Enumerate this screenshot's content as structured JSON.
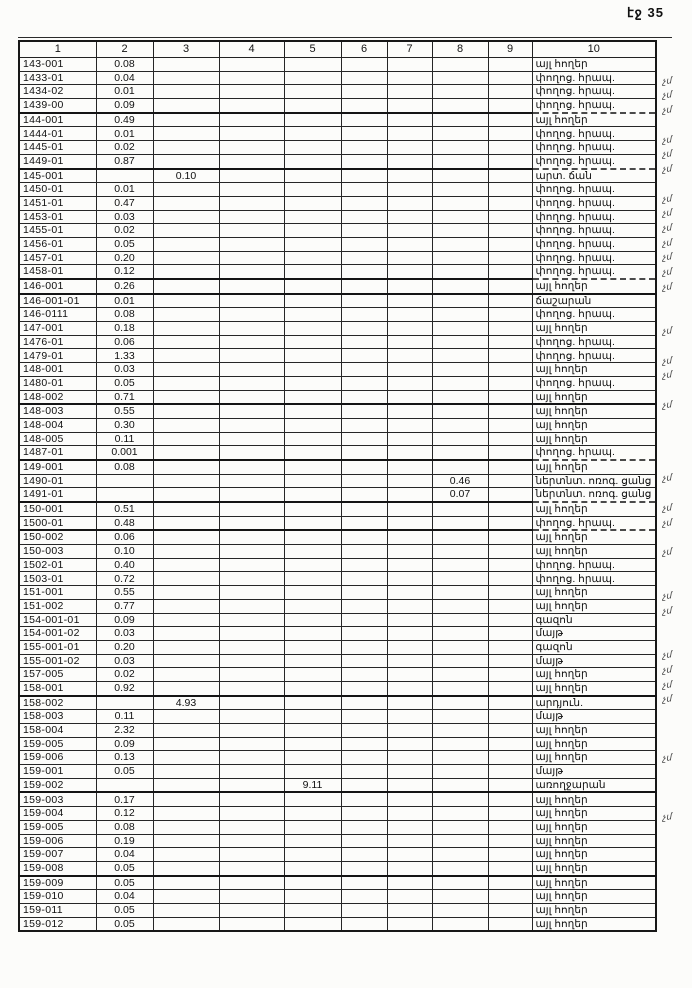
{
  "page": {
    "label": "էջ 35"
  },
  "table": {
    "headers": [
      "1",
      "2",
      "3",
      "4",
      "5",
      "6",
      "7",
      "8",
      "9",
      "10"
    ],
    "rows": [
      {
        "cells": [
          "143-001",
          "0.08",
          "",
          "",
          "",
          "",
          "",
          "",
          "",
          "այլ հողեր"
        ],
        "mark": ""
      },
      {
        "cells": [
          "1433-01",
          "0.04",
          "",
          "",
          "",
          "",
          "",
          "",
          "",
          "փողոց. հրապ."
        ],
        "mark": "չմ"
      },
      {
        "cells": [
          "1434-02",
          "0.01",
          "",
          "",
          "",
          "",
          "",
          "",
          "",
          "փողոց. հրապ."
        ],
        "mark": "չմ"
      },
      {
        "cells": [
          "1439-00",
          "0.09",
          "",
          "",
          "",
          "",
          "",
          "",
          "",
          "փողոց. հրապ."
        ],
        "mark": "չմ"
      },
      {
        "cells": [
          "144-001",
          "0.49",
          "",
          "",
          "",
          "",
          "",
          "",
          "",
          "այլ հողեր"
        ],
        "mark": ""
      },
      {
        "cells": [
          "1444-01",
          "0.01",
          "",
          "",
          "",
          "",
          "",
          "",
          "",
          "փողոց. հրապ."
        ],
        "mark": "չմ"
      },
      {
        "cells": [
          "1445-01",
          "0.02",
          "",
          "",
          "",
          "",
          "",
          "",
          "",
          "փողոց. հրապ."
        ],
        "mark": "չմ"
      },
      {
        "cells": [
          "1449-01",
          "0.87",
          "",
          "",
          "",
          "",
          "",
          "",
          "",
          "փողոց. հրապ."
        ],
        "mark": "չմ"
      },
      {
        "cells": [
          "145-001",
          "",
          "0.10",
          "",
          "",
          "",
          "",
          "",
          "",
          "արտ. ճան"
        ],
        "mark": ""
      },
      {
        "cells": [
          "1450-01",
          "0.01",
          "",
          "",
          "",
          "",
          "",
          "",
          "",
          "փողոց. հրապ."
        ],
        "mark": "չմ"
      },
      {
        "cells": [
          "1451-01",
          "0.47",
          "",
          "",
          "",
          "",
          "",
          "",
          "",
          "փողոց. հրապ."
        ],
        "mark": "չմ"
      },
      {
        "cells": [
          "1453-01",
          "0.03",
          "",
          "",
          "",
          "",
          "",
          "",
          "",
          "փողոց. հրապ."
        ],
        "mark": "չմ"
      },
      {
        "cells": [
          "1455-01",
          "0.02",
          "",
          "",
          "",
          "",
          "",
          "",
          "",
          "փողոց. հրապ."
        ],
        "mark": "չմ"
      },
      {
        "cells": [
          "1456-01",
          "0.05",
          "",
          "",
          "",
          "",
          "",
          "",
          "",
          "փողոց. հրապ."
        ],
        "mark": "չմ"
      },
      {
        "cells": [
          "1457-01",
          "0.20",
          "",
          "",
          "",
          "",
          "",
          "",
          "",
          "փողոց. հրապ."
        ],
        "mark": "չմ"
      },
      {
        "cells": [
          "1458-01",
          "0.12",
          "",
          "",
          "",
          "",
          "",
          "",
          "",
          "փողոց. հրապ."
        ],
        "mark": "չմ"
      },
      {
        "cells": [
          "146-001",
          "0.26",
          "",
          "",
          "",
          "",
          "",
          "",
          "",
          "այլ հողեր"
        ],
        "mark": ""
      },
      {
        "cells": [
          "146-001-01",
          "0.01",
          "",
          "",
          "",
          "",
          "",
          "",
          "",
          "ճաշարան"
        ],
        "mark": ""
      },
      {
        "cells": [
          "146-0111",
          "0.08",
          "",
          "",
          "",
          "",
          "",
          "",
          "",
          "փողոց. հրապ."
        ],
        "mark": "չմ"
      },
      {
        "cells": [
          "147-001",
          "0.18",
          "",
          "",
          "",
          "",
          "",
          "",
          "",
          "այլ հողեր"
        ],
        "mark": ""
      },
      {
        "cells": [
          "1476-01",
          "0.06",
          "",
          "",
          "",
          "",
          "",
          "",
          "",
          "փողոց. հրապ."
        ],
        "mark": "չմ"
      },
      {
        "cells": [
          "1479-01",
          "1.33",
          "",
          "",
          "",
          "",
          "",
          "",
          "",
          "փողոց. հրապ."
        ],
        "mark": "չմ"
      },
      {
        "cells": [
          "148-001",
          "0.03",
          "",
          "",
          "",
          "",
          "",
          "",
          "",
          "այլ հողեր"
        ],
        "mark": ""
      },
      {
        "cells": [
          "1480-01",
          "0.05",
          "",
          "",
          "",
          "",
          "",
          "",
          "",
          "փողոց. հրապ."
        ],
        "mark": "չմ"
      },
      {
        "cells": [
          "148-002",
          "0.71",
          "",
          "",
          "",
          "",
          "",
          "",
          "",
          "այլ հողեր"
        ],
        "mark": ""
      },
      {
        "cells": [
          "148-003",
          "0.55",
          "",
          "",
          "",
          "",
          "",
          "",
          "",
          "այլ հողեր"
        ],
        "mark": ""
      },
      {
        "cells": [
          "148-004",
          "0.30",
          "",
          "",
          "",
          "",
          "",
          "",
          "",
          "այլ հողեր"
        ],
        "mark": ""
      },
      {
        "cells": [
          "148-005",
          "0.11",
          "",
          "",
          "",
          "",
          "",
          "",
          "",
          "այլ հողեր"
        ],
        "mark": ""
      },
      {
        "cells": [
          "1487-01",
          "0.001",
          "",
          "",
          "",
          "",
          "",
          "",
          "",
          "փողոց. հրապ."
        ],
        "mark": "չմ"
      },
      {
        "cells": [
          "149-001",
          "0.08",
          "",
          "",
          "",
          "",
          "",
          "",
          "",
          "այլ հողեր"
        ],
        "mark": ""
      },
      {
        "cells": [
          "1490-01",
          "",
          "",
          "",
          "",
          "",
          "",
          "0.46",
          "",
          "ներտնտ. ոռոգ. ցանց"
        ],
        "mark": "չմ"
      },
      {
        "cells": [
          "1491-01",
          "",
          "",
          "",
          "",
          "",
          "",
          "0.07",
          "",
          "ներտնտ. ոռոգ. ցանց"
        ],
        "mark": "չմ"
      },
      {
        "cells": [
          "150-001",
          "0.51",
          "",
          "",
          "",
          "",
          "",
          "",
          "",
          "այլ հողեր"
        ],
        "mark": ""
      },
      {
        "cells": [
          "1500-01",
          "0.48",
          "",
          "",
          "",
          "",
          "",
          "",
          "",
          "փողոց. հրապ."
        ],
        "mark": "չմ"
      },
      {
        "cells": [
          "150-002",
          "0.06",
          "",
          "",
          "",
          "",
          "",
          "",
          "",
          "այլ հողեր"
        ],
        "mark": ""
      },
      {
        "cells": [
          "150-003",
          "0.10",
          "",
          "",
          "",
          "",
          "",
          "",
          "",
          "այլ հողեր"
        ],
        "mark": ""
      },
      {
        "cells": [
          "1502-01",
          "0.40",
          "",
          "",
          "",
          "",
          "",
          "",
          "",
          "փողոց. հրապ."
        ],
        "mark": "չմ"
      },
      {
        "cells": [
          "1503-01",
          "0.72",
          "",
          "",
          "",
          "",
          "",
          "",
          "",
          "փողոց. հրապ."
        ],
        "mark": "չմ"
      },
      {
        "cells": [
          "151-001",
          "0.55",
          "",
          "",
          "",
          "",
          "",
          "",
          "",
          "այլ հողեր"
        ],
        "mark": ""
      },
      {
        "cells": [
          "151-002",
          "0.77",
          "",
          "",
          "",
          "",
          "",
          "",
          "",
          "այլ հողեր"
        ],
        "mark": ""
      },
      {
        "cells": [
          "154-001-01",
          "0.09",
          "",
          "",
          "",
          "",
          "",
          "",
          "",
          "գազոն"
        ],
        "mark": "չմ"
      },
      {
        "cells": [
          "154-001-02",
          "0.03",
          "",
          "",
          "",
          "",
          "",
          "",
          "",
          "մայթ"
        ],
        "mark": "չմ"
      },
      {
        "cells": [
          "155-001-01",
          "0.20",
          "",
          "",
          "",
          "",
          "",
          "",
          "",
          "գազոն"
        ],
        "mark": "չմ"
      },
      {
        "cells": [
          "155-001-02",
          "0.03",
          "",
          "",
          "",
          "",
          "",
          "",
          "",
          "մայթ"
        ],
        "mark": "չմ"
      },
      {
        "cells": [
          "157-005",
          "0.02",
          "",
          "",
          "",
          "",
          "",
          "",
          "",
          "այլ հողեր"
        ],
        "mark": ""
      },
      {
        "cells": [
          "158-001",
          "0.92",
          "",
          "",
          "",
          "",
          "",
          "",
          "",
          "այլ հողեր"
        ],
        "mark": ""
      },
      {
        "cells": [
          "158-002",
          "",
          "4.93",
          "",
          "",
          "",
          "",
          "",
          "",
          "արդյուն."
        ],
        "mark": ""
      },
      {
        "cells": [
          "158-003",
          "0.11",
          "",
          "",
          "",
          "",
          "",
          "",
          "",
          "մայթ"
        ],
        "mark": "չմ"
      },
      {
        "cells": [
          "158-004",
          "2.32",
          "",
          "",
          "",
          "",
          "",
          "",
          "",
          "այլ հողեր"
        ],
        "mark": ""
      },
      {
        "cells": [
          "159-005",
          "0.09",
          "",
          "",
          "",
          "",
          "",
          "",
          "",
          "այլ հողեր"
        ],
        "mark": ""
      },
      {
        "cells": [
          "159-006",
          "0.13",
          "",
          "",
          "",
          "",
          "",
          "",
          "",
          "այլ հողեր"
        ],
        "mark": ""
      },
      {
        "cells": [
          "159-001",
          "0.05",
          "",
          "",
          "",
          "",
          "",
          "",
          "",
          "մայթ"
        ],
        "mark": "չմ"
      },
      {
        "cells": [
          "159-002",
          "",
          "",
          "",
          "9.11",
          "",
          "",
          "",
          "",
          "առողջարան"
        ],
        "mark": ""
      },
      {
        "cells": [
          "159-003",
          "0.17",
          "",
          "",
          "",
          "",
          "",
          "",
          "",
          "այլ հողեր"
        ],
        "mark": ""
      },
      {
        "cells": [
          "159-004",
          "0.12",
          "",
          "",
          "",
          "",
          "",
          "",
          "",
          "այլ հողեր"
        ],
        "mark": ""
      },
      {
        "cells": [
          "159-005",
          "0.08",
          "",
          "",
          "",
          "",
          "",
          "",
          "",
          "այլ հողեր"
        ],
        "mark": ""
      },
      {
        "cells": [
          "159-006",
          "0.19",
          "",
          "",
          "",
          "",
          "",
          "",
          "",
          "այլ հողեր"
        ],
        "mark": ""
      },
      {
        "cells": [
          "159-007",
          "0.04",
          "",
          "",
          "",
          "",
          "",
          "",
          "",
          "այլ հողեր"
        ],
        "mark": ""
      },
      {
        "cells": [
          "159-008",
          "0.05",
          "",
          "",
          "",
          "",
          "",
          "",
          "",
          "այլ հողեր"
        ],
        "mark": ""
      },
      {
        "cells": [
          "159-009",
          "0.05",
          "",
          "",
          "",
          "",
          "",
          "",
          "",
          "այլ հողեր"
        ],
        "mark": ""
      },
      {
        "cells": [
          "159-010",
          "0.04",
          "",
          "",
          "",
          "",
          "",
          "",
          "",
          "այլ հողեր"
        ],
        "mark": ""
      },
      {
        "cells": [
          "159-011",
          "0.05",
          "",
          "",
          "",
          "",
          "",
          "",
          "",
          "այլ հողեր"
        ],
        "mark": ""
      },
      {
        "cells": [
          "159-012",
          "0.05",
          "",
          "",
          "",
          "",
          "",
          "",
          "",
          "այլ հողեր"
        ],
        "mark": ""
      }
    ]
  }
}
